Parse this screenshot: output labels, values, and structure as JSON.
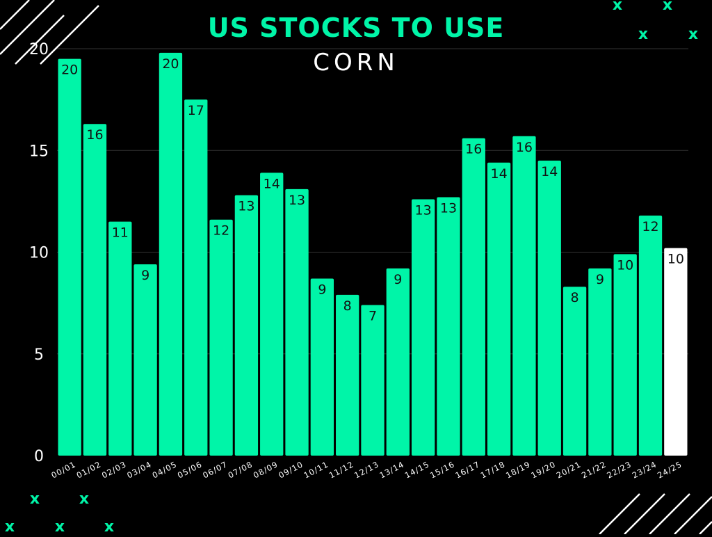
{
  "header": {
    "title": "US STOCKS TO USE",
    "subtitle": "CORN"
  },
  "colors": {
    "background": "#000000",
    "bar": "#00f5a8",
    "highlight_bar": "#ffffff",
    "text": "#ffffff",
    "gridline": "#333333",
    "accent": "#00f5a8"
  },
  "decorations": {
    "mark_glyph": "x",
    "stripes": "diagonal-white-stripes"
  },
  "chart_data": {
    "type": "bar",
    "title": "US STOCKS TO USE",
    "subtitle": "CORN",
    "xlabel": "",
    "ylabel": "",
    "ylim": [
      0,
      20
    ],
    "yticks": [
      0,
      5,
      10,
      15,
      20
    ],
    "grid": true,
    "categories": [
      "00/01",
      "01/02",
      "02/03",
      "03/04",
      "04/05",
      "05/06",
      "06/07",
      "07/08",
      "08/09",
      "09/10",
      "10/11",
      "11/12",
      "12/13",
      "13/14",
      "14/15",
      "15/16",
      "16/17",
      "17/18",
      "18/19",
      "19/20",
      "20/21",
      "21/22",
      "22/23",
      "23/24",
      "24/25"
    ],
    "values": [
      19.5,
      16.3,
      11.5,
      9.4,
      19.8,
      17.5,
      11.6,
      12.8,
      13.9,
      13.1,
      8.7,
      7.9,
      7.4,
      9.2,
      12.6,
      12.7,
      15.6,
      14.4,
      15.7,
      14.5,
      8.3,
      9.2,
      9.9,
      11.8,
      10.2
    ],
    "data_labels": [
      "20",
      "16",
      "11",
      "9",
      "20",
      "17",
      "12",
      "13",
      "14",
      "13",
      "9",
      "8",
      "7",
      "9",
      "13",
      "13",
      "16",
      "14",
      "16",
      "14",
      "8",
      "9",
      "10",
      "12",
      "10"
    ],
    "highlight_index": 24
  }
}
